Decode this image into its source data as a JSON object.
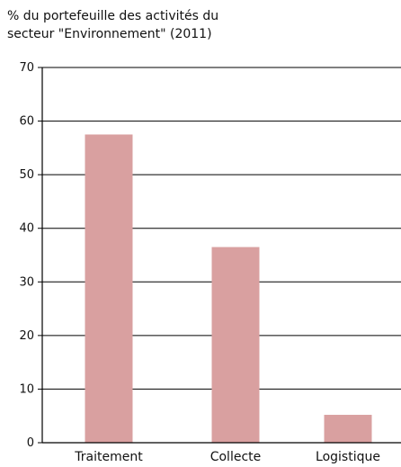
{
  "chart_data": {
    "type": "bar",
    "title_lines": [
      "% du portefeuille des activités du",
      "secteur \"Environnement\" (2011)"
    ],
    "categories": [
      "Traitement",
      "Collecte",
      "Logistique"
    ],
    "values": [
      57.5,
      36.5,
      5.2
    ],
    "ylim": [
      0,
      70
    ],
    "yticks": [
      0,
      10,
      20,
      30,
      40,
      50,
      60,
      70
    ],
    "grid": true,
    "colors": {
      "bar": "#d9a0a0",
      "grid": "#000000",
      "axis": "#000000"
    }
  }
}
